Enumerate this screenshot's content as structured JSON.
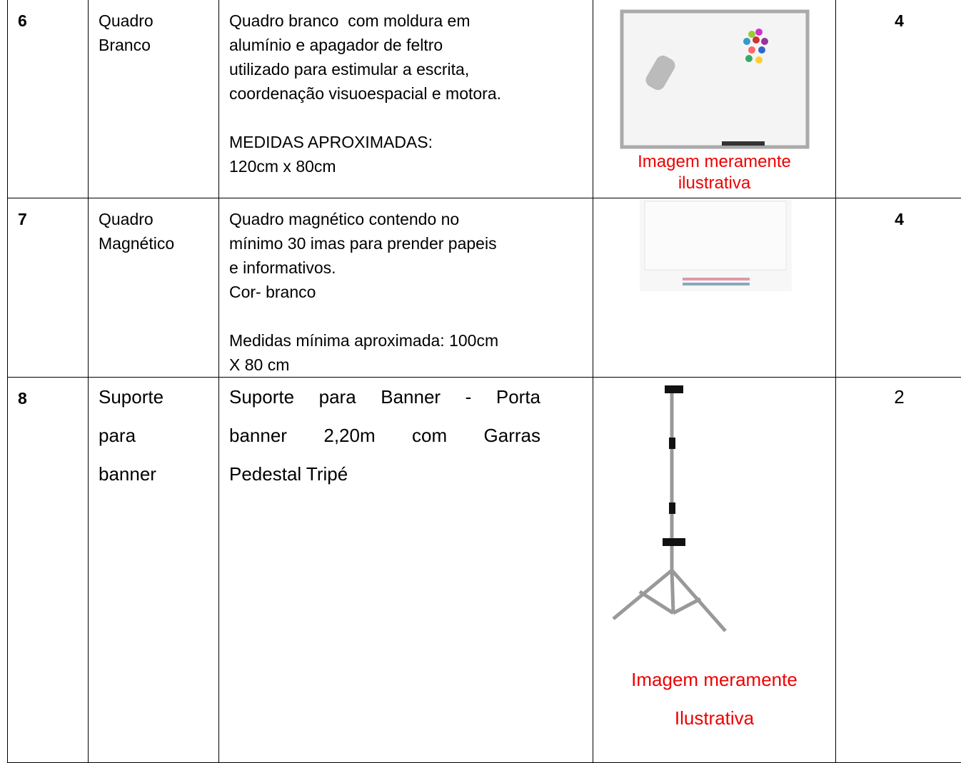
{
  "table": {
    "rows": [
      {
        "number": "6",
        "item": [
          "Quadro",
          "Branco"
        ],
        "description": [
          [
            "Quadro branco  com moldura em",
            "alumínio e apagador de feltro",
            "utilizado para estimular a escrita,",
            "coordenação visuoespacial e motora."
          ],
          [
            "MEDIDAS APROXIMADAS:",
            "120cm x 80cm"
          ]
        ],
        "caption": [
          "Imagem meramente",
          "ilustrativa"
        ],
        "quantity": "4"
      },
      {
        "number": "7",
        "item": [
          "Quadro",
          "Magnético"
        ],
        "description": [
          [
            "Quadro magnético contendo no",
            "mínimo 30 imas para prender papeis",
            "e informativos.",
            "Cor- branco"
          ],
          [
            "Medidas mínima aproximada: 100cm",
            "X 80 cm"
          ]
        ],
        "quantity": "4"
      },
      {
        "number": "8",
        "item": [
          "Suporte",
          "para",
          "banner"
        ],
        "description": [
          [
            "Suporte para Banner - Porta",
            "banner 2,20m com Garras",
            "Pedestal Tripé"
          ]
        ],
        "caption": [
          "Imagem meramente",
          "Ilustrativa"
        ],
        "quantity": "2"
      }
    ]
  }
}
